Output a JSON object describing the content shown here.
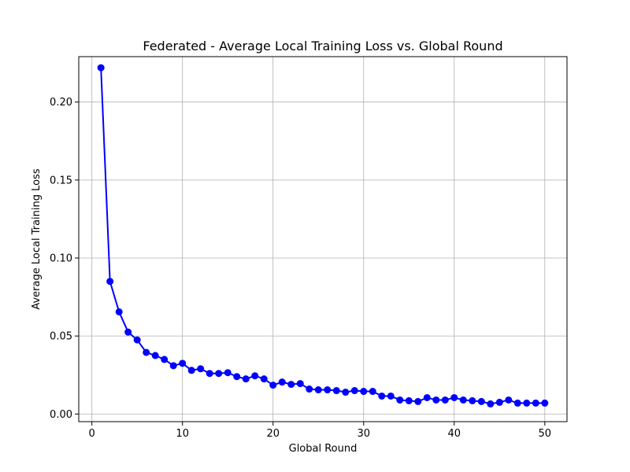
{
  "chart_data": {
    "type": "line",
    "title": "Federated - Average Local Training Loss vs. Global Round",
    "xlabel": "Global Round",
    "ylabel": "Average Local Training Loss",
    "xlim": [
      -1.45,
      52.45
    ],
    "ylim": [
      -0.0049,
      0.2291
    ],
    "xticks": [
      0,
      10,
      20,
      30,
      40,
      50
    ],
    "xtick_labels": [
      "0",
      "10",
      "20",
      "30",
      "40",
      "50"
    ],
    "yticks": [
      0.0,
      0.05,
      0.1,
      0.15,
      0.2
    ],
    "ytick_labels": [
      "0.00",
      "0.05",
      "0.10",
      "0.15",
      "0.20"
    ],
    "grid": true,
    "legend": "none",
    "series": [
      {
        "color": "#0000ff",
        "marker": "circle",
        "x": [
          1,
          2,
          3,
          4,
          5,
          6,
          7,
          8,
          9,
          10,
          11,
          12,
          13,
          14,
          15,
          16,
          17,
          18,
          19,
          20,
          21,
          22,
          23,
          24,
          25,
          26,
          27,
          28,
          29,
          30,
          31,
          32,
          33,
          34,
          35,
          36,
          37,
          38,
          39,
          40,
          41,
          42,
          43,
          44,
          45,
          46,
          47,
          48,
          49,
          50
        ],
        "y": [
          0.222,
          0.085,
          0.0655,
          0.0525,
          0.0475,
          0.0395,
          0.0375,
          0.035,
          0.031,
          0.0325,
          0.028,
          0.029,
          0.026,
          0.026,
          0.0265,
          0.024,
          0.0225,
          0.0245,
          0.0225,
          0.0185,
          0.0205,
          0.019,
          0.0195,
          0.016,
          0.0155,
          0.0155,
          0.015,
          0.014,
          0.015,
          0.0145,
          0.0145,
          0.0115,
          0.0115,
          0.009,
          0.0085,
          0.008,
          0.0105,
          0.009,
          0.009,
          0.0105,
          0.009,
          0.0085,
          0.008,
          0.0065,
          0.0075,
          0.009,
          0.007,
          0.007,
          0.007,
          0.007
        ]
      }
    ]
  }
}
